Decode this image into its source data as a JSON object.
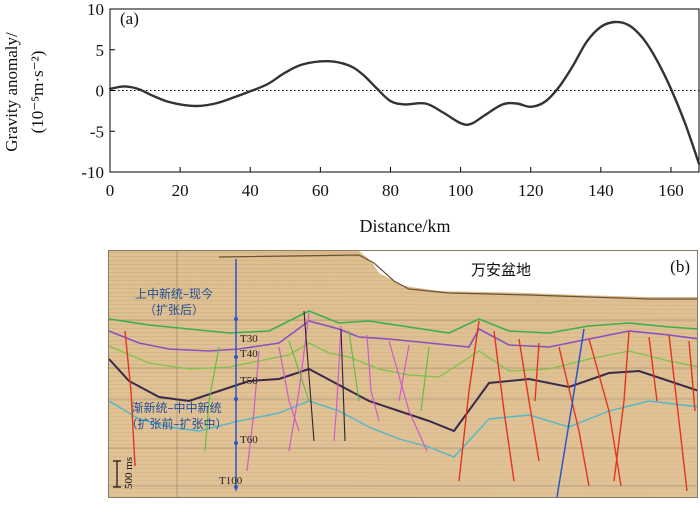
{
  "chart_data": [
    {
      "type": "line",
      "panel_label": "(a)",
      "xlabel": "Distance/km",
      "ylabel_line1": "Gravity anomaly/",
      "ylabel_line2": "(10⁻⁵m·s⁻²)",
      "xlim": [
        0,
        168
      ],
      "ylim": [
        -10,
        10
      ],
      "x_ticks": [
        "0",
        "20",
        "40",
        "60",
        "80",
        "100",
        "120",
        "140",
        "160"
      ],
      "y_ticks": [
        "10",
        "5",
        "0",
        "-5",
        "-10"
      ],
      "reference_line": {
        "y": 0,
        "style": "dotted"
      },
      "series": [
        {
          "x": [
            0,
            4,
            8,
            12,
            16,
            20,
            25,
            30,
            35,
            40,
            45,
            50,
            55,
            62,
            68,
            72,
            76,
            80,
            84,
            90,
            95,
            100,
            103,
            107,
            112,
            116,
            120,
            124,
            128,
            132,
            136,
            140,
            144,
            148,
            152,
            156,
            160,
            164,
            168
          ],
          "y": [
            0.2,
            0.5,
            0.2,
            -0.6,
            -1.3,
            -1.7,
            -1.9,
            -1.6,
            -0.9,
            -0.1,
            0.8,
            2.2,
            3.2,
            3.6,
            3.1,
            2.0,
            0.3,
            -1.3,
            -1.7,
            -1.6,
            -2.7,
            -4.0,
            -4.1,
            -3.0,
            -1.7,
            -1.6,
            -2.0,
            -1.4,
            0.4,
            3.0,
            6.0,
            7.8,
            8.4,
            8.0,
            6.4,
            3.7,
            0.2,
            -4.0,
            -9.0
          ],
          "color": "#333333"
        }
      ]
    },
    {
      "type": "image",
      "panel_label": "(b)",
      "basin_label": "万安盆地",
      "unit_label_upper_1": "上中新统–现今",
      "unit_label_upper_2": "（扩张后）",
      "unit_label_lower_1": "渐新统–中中新统",
      "unit_label_lower_2": "（扩张前–扩张中）",
      "horizons": [
        "T30",
        "T40",
        "T50",
        "T60",
        "T100"
      ],
      "scale_label": "500 ms"
    }
  ],
  "colors": {
    "curve": "#333333",
    "seismic_bg": "#d9b88a",
    "horizon_green": "#3bb04a",
    "horizon_purple": "#8a4fc0",
    "horizon_dark": "#3a2a4a",
    "horizon_cyan": "#4fb8c8",
    "fault_red": "#e2341e",
    "fault_blue": "#2d55c8",
    "fault_pink": "#d25ac8",
    "label_blue": "#1f4f9a"
  }
}
